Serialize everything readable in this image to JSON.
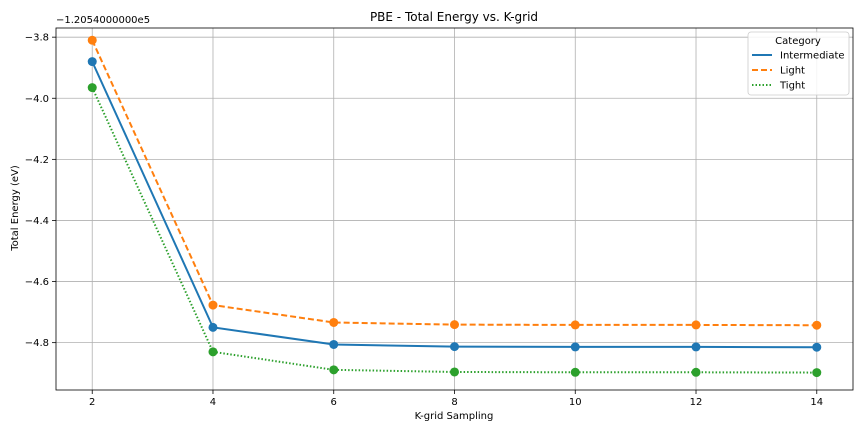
{
  "chart_data": {
    "type": "line",
    "title": "PBE - Total Energy vs. K-grid",
    "xlabel": "K-grid Sampling",
    "ylabel": "Total Energy (eV)",
    "offset_text": "−1.2054000000e5",
    "x": [
      2,
      4,
      6,
      8,
      10,
      12,
      14
    ],
    "xlim": [
      1.4,
      14.6
    ],
    "ylim": [
      -4.955,
      -3.77
    ],
    "x_ticks": [
      2,
      4,
      6,
      8,
      10,
      12,
      14
    ],
    "x_tick_labels": [
      "2",
      "4",
      "6",
      "8",
      "10",
      "12",
      "14"
    ],
    "y_ticks": [
      -4.8,
      -4.6,
      -4.4,
      -4.2,
      -4.0,
      -3.8
    ],
    "y_tick_labels": [
      "−4.8",
      "−4.6",
      "−4.4",
      "−4.2",
      "−4.0",
      "−3.8"
    ],
    "grid": true,
    "legend": {
      "title": "Category",
      "placement": "top-right"
    },
    "series": [
      {
        "name": "Intermediate",
        "color": "#1f77b4",
        "dash": "solid",
        "values": [
          -3.88,
          -4.75,
          -4.806,
          -4.813,
          -4.814,
          -4.814,
          -4.815
        ]
      },
      {
        "name": "Light",
        "color": "#ff7f0e",
        "dash": "dashed",
        "values": [
          -3.81,
          -4.677,
          -4.734,
          -4.741,
          -4.742,
          -4.742,
          -4.743
        ]
      },
      {
        "name": "Tight",
        "color": "#2ca02c",
        "dash": "dotted",
        "values": [
          -3.965,
          -4.83,
          -4.889,
          -4.896,
          -4.897,
          -4.897,
          -4.898
        ]
      }
    ]
  }
}
